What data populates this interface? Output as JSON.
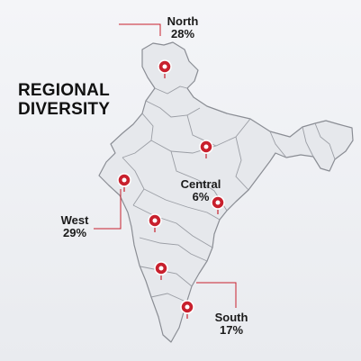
{
  "title": {
    "line1": "REGIONAL",
    "line2": "DIVERSITY"
  },
  "colors": {
    "background": "#eef0f3",
    "map_fill": "#e6e8ec",
    "map_stroke": "#8a8d94",
    "marker": "#c8202d",
    "leader_line": "#c8202d"
  },
  "regions": [
    {
      "name": "North",
      "value": "28%"
    },
    {
      "name": "Central",
      "value": "6%"
    },
    {
      "name": "West",
      "value": "29%"
    },
    {
      "name": "South",
      "value": "17%"
    }
  ],
  "marker_icon": "map-pin-icon"
}
